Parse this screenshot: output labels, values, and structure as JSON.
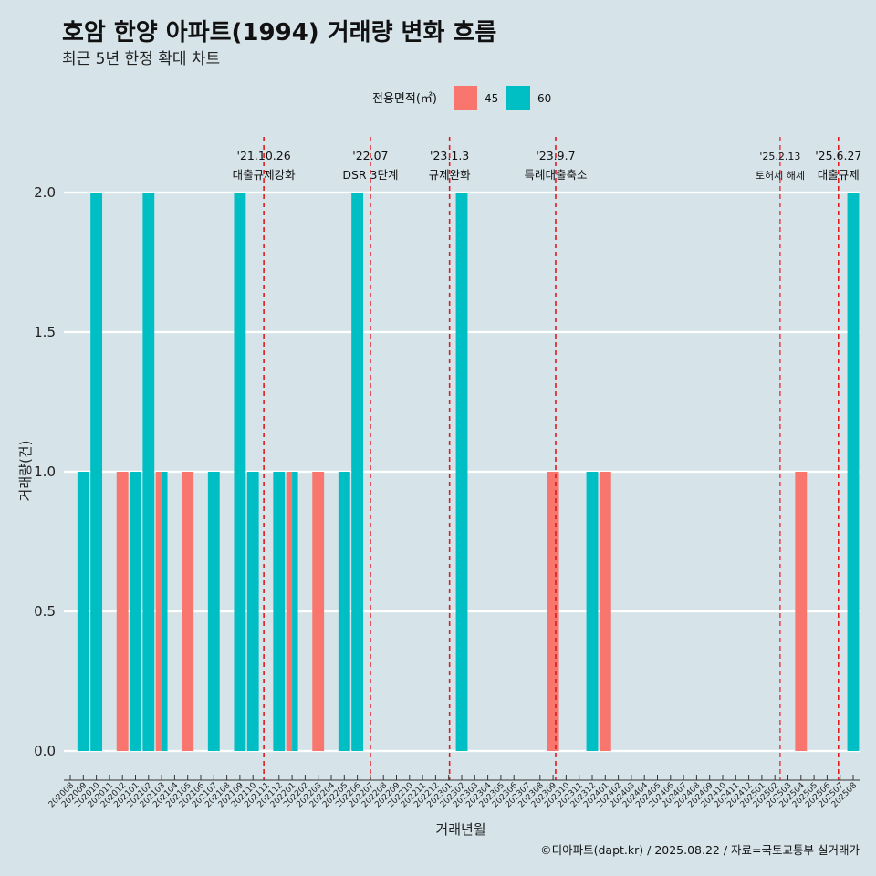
{
  "chart_data": {
    "type": "bar",
    "title": "호암 한양 아파트(1994) 거래량 변화 흐름",
    "subtitle": "최근 5년 한정 확대 차트",
    "xlabel": "거래년월",
    "ylabel": "거래량(건)",
    "ylim": [
      0,
      2.0
    ],
    "yticks": [
      "0.0",
      "0.5",
      "1.0",
      "1.5",
      "2.0"
    ],
    "legend": {
      "title": "전용면적(㎡)",
      "position": "top",
      "entries": [
        {
          "name": "45",
          "color": "#f8766d"
        },
        {
          "name": "60",
          "color": "#00bfc4"
        }
      ]
    },
    "categories": [
      "202008",
      "202009",
      "202010",
      "202011",
      "202012",
      "202101",
      "202102",
      "202103",
      "202104",
      "202105",
      "202106",
      "202107",
      "202108",
      "202109",
      "202110",
      "202111",
      "202112",
      "202201",
      "202202",
      "202203",
      "202204",
      "202205",
      "202206",
      "202207",
      "202208",
      "202209",
      "202210",
      "202211",
      "202212",
      "202301",
      "202302",
      "202303",
      "202304",
      "202305",
      "202306",
      "202307",
      "202308",
      "202309",
      "202310",
      "202311",
      "202312",
      "202401",
      "202402",
      "202403",
      "202404",
      "202405",
      "202406",
      "202407",
      "202408",
      "202409",
      "202410",
      "202411",
      "202412",
      "202501",
      "202502",
      "202503",
      "202504",
      "202505",
      "202506",
      "202507",
      "202508"
    ],
    "series": [
      {
        "name": "45",
        "color": "#f8766d",
        "points": [
          {
            "x": "202012",
            "y": 1
          },
          {
            "x": "202103",
            "y": 1
          },
          {
            "x": "202105",
            "y": 1
          },
          {
            "x": "202201",
            "y": 1
          },
          {
            "x": "202203",
            "y": 1
          },
          {
            "x": "202309",
            "y": 1
          },
          {
            "x": "202401",
            "y": 1
          },
          {
            "x": "202504",
            "y": 1
          }
        ]
      },
      {
        "name": "60",
        "color": "#00bfc4",
        "points": [
          {
            "x": "202009",
            "y": 1
          },
          {
            "x": "202010",
            "y": 2
          },
          {
            "x": "202101",
            "y": 1
          },
          {
            "x": "202102",
            "y": 2
          },
          {
            "x": "202103",
            "y": 1
          },
          {
            "x": "202107",
            "y": 1
          },
          {
            "x": "202109",
            "y": 2
          },
          {
            "x": "202110",
            "y": 1
          },
          {
            "x": "202112",
            "y": 1
          },
          {
            "x": "202201",
            "y": 1
          },
          {
            "x": "202205",
            "y": 1
          },
          {
            "x": "202206",
            "y": 2
          },
          {
            "x": "202302",
            "y": 2
          },
          {
            "x": "202312",
            "y": 1
          },
          {
            "x": "202508",
            "y": 2
          }
        ]
      }
    ],
    "events": [
      {
        "date": "2021-10-26",
        "label_top": "'21.10.26",
        "label_bottom": "대출규제강화",
        "small": false
      },
      {
        "date": "2022-07-01",
        "label_top": "'22.07",
        "label_bottom": "DSR 3단계",
        "small": false
      },
      {
        "date": "2023-01-03",
        "label_top": "'23.1.3",
        "label_bottom": "규제완화",
        "small": false
      },
      {
        "date": "2023-09-07",
        "label_top": "'23.9.7",
        "label_bottom": "특례대출축소",
        "small": false
      },
      {
        "date": "2025-02-13",
        "label_top": "'25.2.13",
        "label_bottom": "토허제 해제",
        "small": true
      },
      {
        "date": "2025-06-27",
        "label_top": "'25.6.27",
        "label_bottom": "대출규제",
        "small": false
      }
    ],
    "event_line_color": "#e41a1c",
    "grid": true,
    "caption": "©디아파트(dapt.kr) / 2025.08.22 / 자료=국토교통부 실거래가"
  }
}
